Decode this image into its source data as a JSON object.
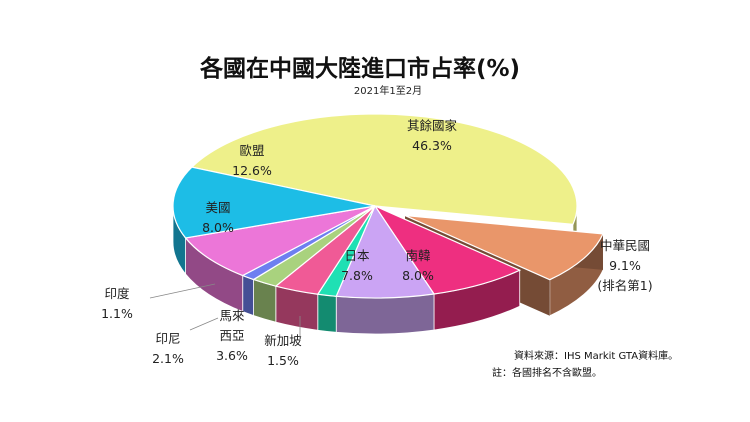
{
  "chart_data": {
    "type": "pie",
    "title": "各國在中國大陸進口市占率(%)",
    "subtitle": "2021年1至2月",
    "slices": [
      {
        "label": "其餘國家",
        "value": 46.3,
        "display": "46.3%",
        "color": "#eef08a"
      },
      {
        "label": "中華民國",
        "value": 9.1,
        "display": "9.1%",
        "note": "(排名第1)",
        "color": "#e9966a",
        "exploded": true
      },
      {
        "label": "南韓",
        "value": 8.0,
        "display": "8.0%",
        "color": "#ee2f80"
      },
      {
        "label": "日本",
        "value": 7.8,
        "display": "7.8%",
        "color": "#cba4f4"
      },
      {
        "label": "新加坡",
        "value": 1.5,
        "display": "1.5%",
        "color": "#1fe0b4"
      },
      {
        "label": "馬來西亞",
        "label_lines": [
          "馬來",
          "西亞"
        ],
        "value": 3.6,
        "display": "3.6%",
        "color": "#f05a96"
      },
      {
        "label": "印尼",
        "value": 2.1,
        "display": "2.1%",
        "color": "#a9d27e"
      },
      {
        "label": "印度",
        "value": 1.1,
        "display": "1.1%",
        "color": "#6e7ff0"
      },
      {
        "label": "美國",
        "value": 8.0,
        "display": "8.0%",
        "color": "#ec76d8"
      },
      {
        "label": "歐盟",
        "value": 12.6,
        "display": "12.6%",
        "color": "#1dbde6"
      }
    ]
  },
  "notes": [
    "資料來源：IHS Markit GTA資料庫。",
    "註：各國排名不含歐盟。"
  ]
}
